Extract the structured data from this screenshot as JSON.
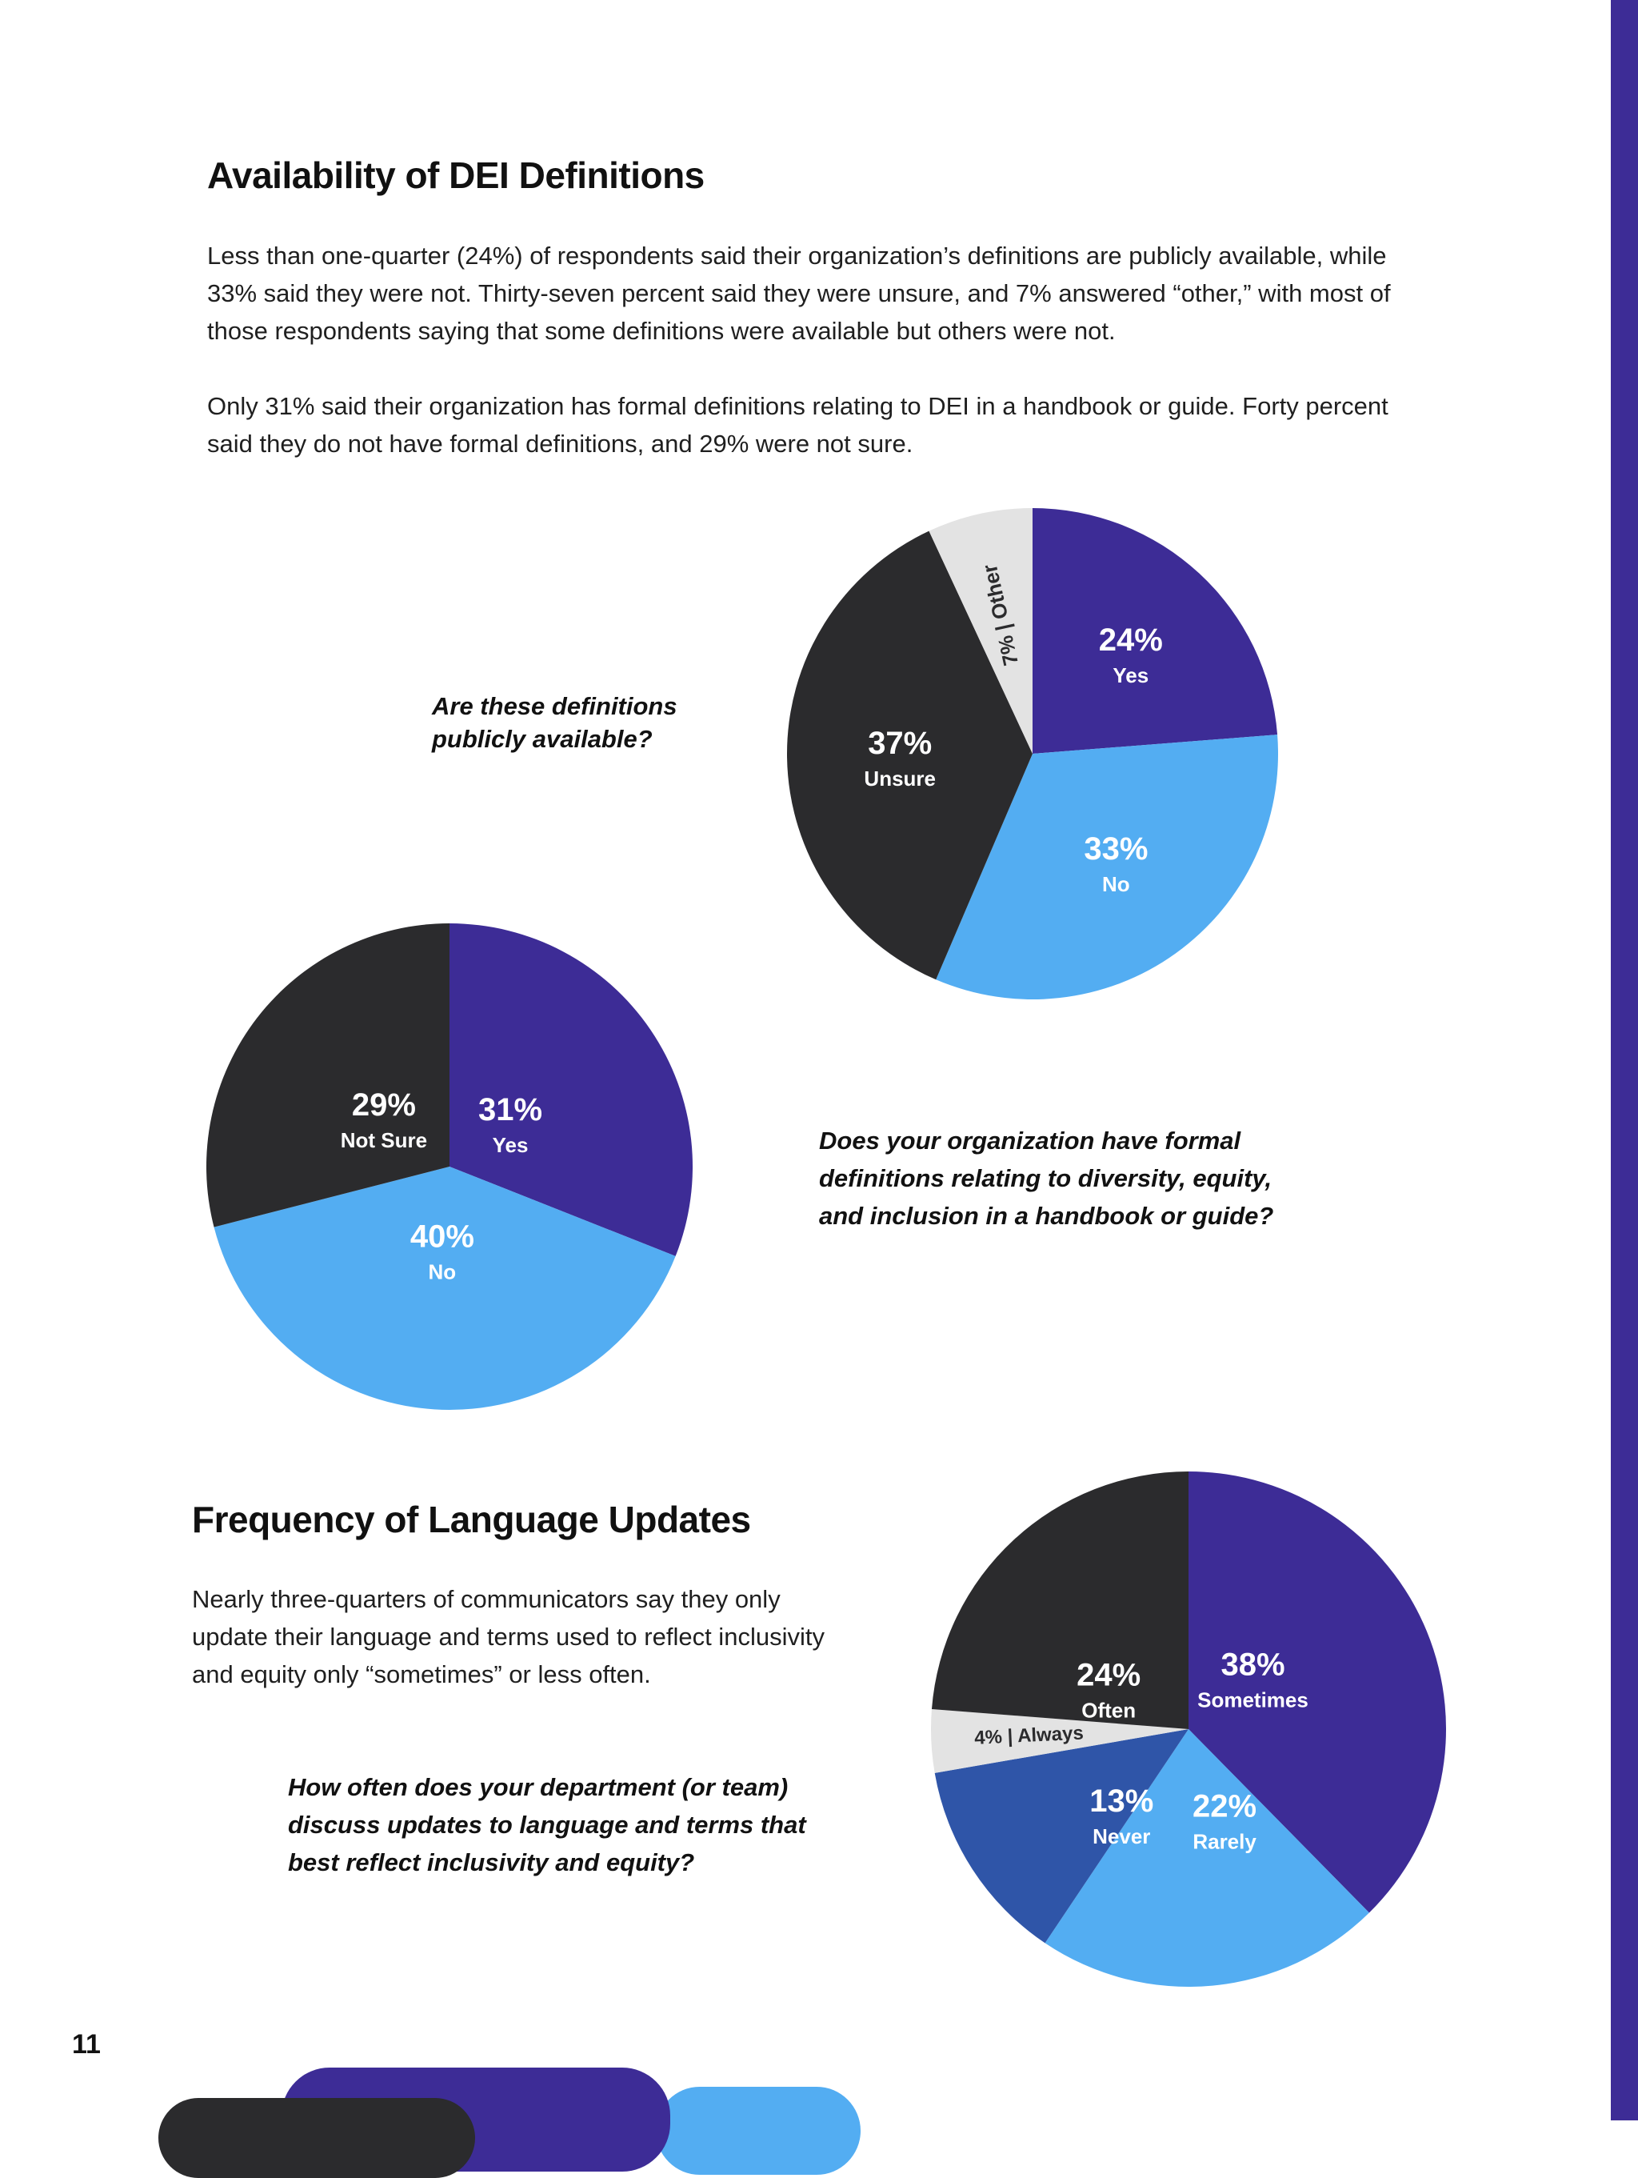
{
  "page_number": "11",
  "section1": {
    "title": "Availability of DEI Definitions",
    "paragraph1_line1": "Less than one-quarter (24%) of respondents said their organization’s definitions are publicly available, while",
    "paragraph1_line2": "33% said they were not. Thirty-seven percent said they were unsure, and 7% answered “other,” with most of",
    "paragraph1_line3": "those respondents saying that some definitions were available but others were not.",
    "paragraph2_line1": "Only 31% said their organization has formal definitions relating to DEI in a handbook or guide. Forty percent",
    "paragraph2_line2": "said they do not have formal definitions, and 29% were not sure."
  },
  "section2": {
    "title": "Frequency of Language Updates",
    "paragraph_line1": "Nearly three-quarters of communicators say they only",
    "paragraph_line2": "update their language and terms used to reflect inclusivity",
    "paragraph_line3": "and equity only “sometimes” or less often."
  },
  "questions": {
    "q1_line1": "Are these definitions",
    "q1_line2": "publicly available?",
    "q2_line1": "Does your organization have formal",
    "q2_line2": "definitions relating to diversity, equity,",
    "q2_line3": "and inclusion in a handbook or guide?",
    "q3_line1": "How often does your department (or team)",
    "q3_line2": "discuss updates to language and terms that",
    "q3_line3": "best reflect inclusivity and equity?"
  },
  "colors": {
    "purple": "#3d2c96",
    "light_blue": "#53adf2",
    "dark": "#2b2b2d",
    "light_gray": "#e3e3e3",
    "mid_blue": "#2f55a8",
    "side_bar": "#3d2c96"
  },
  "chart_data": [
    {
      "type": "pie",
      "slices": [
        {
          "label": "Yes",
          "value": 24,
          "pct_text": "24%",
          "color": "#3d2c96"
        },
        {
          "label": "No",
          "value": 33,
          "pct_text": "33%",
          "color": "#53adf2"
        },
        {
          "label": "Unsure",
          "value": 37,
          "pct_text": "37%",
          "color": "#2b2b2d"
        },
        {
          "label": "Other",
          "value": 7,
          "pct_text": "7%",
          "color": "#e3e3e3"
        }
      ]
    },
    {
      "type": "pie",
      "slices": [
        {
          "label": "Yes",
          "value": 31,
          "pct_text": "31%",
          "color": "#3d2c96"
        },
        {
          "label": "No",
          "value": 40,
          "pct_text": "40%",
          "color": "#53adf2"
        },
        {
          "label": "Not Sure",
          "value": 29,
          "pct_text": "29%",
          "color": "#2b2b2d"
        }
      ]
    },
    {
      "type": "pie",
      "slices": [
        {
          "label": "Sometimes",
          "value": 38,
          "pct_text": "38%",
          "color": "#3d2c96"
        },
        {
          "label": "Rarely",
          "value": 22,
          "pct_text": "22%",
          "color": "#53adf2"
        },
        {
          "label": "Never",
          "value": 13,
          "pct_text": "13%",
          "color": "#2f55a8"
        },
        {
          "label": "Always",
          "value": 4,
          "pct_text": "4%",
          "color": "#e3e3e3"
        },
        {
          "label": "Often",
          "value": 24,
          "pct_text": "24%",
          "color": "#2b2b2d"
        }
      ]
    }
  ]
}
